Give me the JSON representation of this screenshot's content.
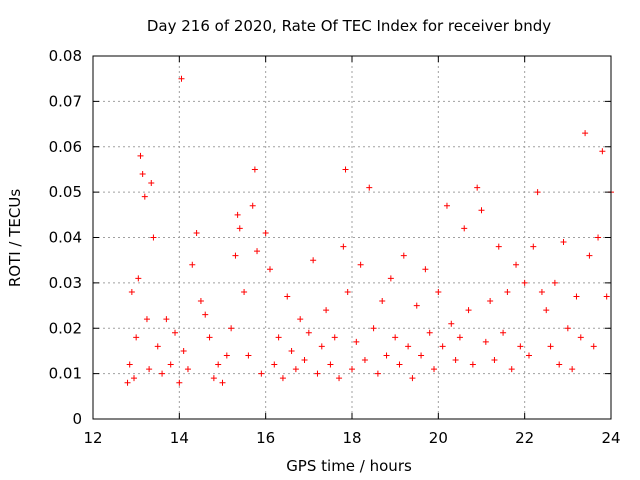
{
  "chart_data": {
    "type": "scatter",
    "title": "Day 216 of 2020, Rate Of TEC Index for receiver bndy",
    "xlabel": "GPS time / hours",
    "ylabel": "ROTI / TECUs",
    "xlim": [
      12,
      24
    ],
    "ylim": [
      0,
      0.08
    ],
    "xticks": [
      12,
      14,
      16,
      18,
      20,
      22,
      24
    ],
    "xtick_labels": [
      "12",
      "14",
      "16",
      "18",
      "20",
      "22",
      "24"
    ],
    "yticks": [
      0,
      0.01,
      0.02,
      0.03,
      0.04,
      0.05,
      0.06,
      0.07,
      0.08
    ],
    "ytick_labels": [
      "0",
      "0.01",
      "0.02",
      "0.03",
      "0.04",
      "0.05",
      "0.06",
      "0.07",
      "0.08"
    ],
    "grid": true,
    "marker": "+",
    "color": "#ff0000",
    "series": [
      {
        "name": "ROTI",
        "x": [
          12.8,
          12.85,
          12.9,
          12.95,
          13.0,
          13.05,
          13.1,
          13.15,
          13.2,
          13.25,
          13.3,
          13.35,
          13.4,
          13.5,
          13.6,
          13.7,
          13.8,
          13.9,
          14.0,
          14.05,
          14.1,
          14.2,
          14.3,
          14.4,
          14.5,
          14.6,
          14.7,
          14.8,
          14.9,
          15.0,
          15.1,
          15.2,
          15.3,
          15.35,
          15.4,
          15.5,
          15.6,
          15.7,
          15.75,
          15.8,
          15.9,
          16.0,
          16.1,
          16.2,
          16.3,
          16.4,
          16.5,
          16.6,
          16.7,
          16.8,
          16.9,
          17.0,
          17.1,
          17.2,
          17.3,
          17.4,
          17.5,
          17.6,
          17.7,
          17.8,
          17.85,
          17.9,
          18.0,
          18.1,
          18.2,
          18.3,
          18.4,
          18.5,
          18.6,
          18.7,
          18.8,
          18.9,
          19.0,
          19.1,
          19.2,
          19.3,
          19.4,
          19.5,
          19.6,
          19.7,
          19.8,
          19.9,
          20.0,
          20.1,
          20.2,
          20.3,
          20.4,
          20.5,
          20.6,
          20.7,
          20.8,
          20.9,
          21.0,
          21.1,
          21.2,
          21.3,
          21.4,
          21.5,
          21.6,
          21.7,
          21.8,
          21.9,
          22.0,
          22.1,
          22.2,
          22.3,
          22.4,
          22.5,
          22.6,
          22.7,
          22.8,
          22.9,
          23.0,
          23.1,
          23.2,
          23.3,
          23.4,
          23.5,
          23.6,
          23.7,
          23.8,
          23.9,
          24.0
        ],
        "y": [
          0.008,
          0.012,
          0.028,
          0.009,
          0.018,
          0.031,
          0.058,
          0.054,
          0.049,
          0.022,
          0.011,
          0.052,
          0.04,
          0.016,
          0.01,
          0.022,
          0.012,
          0.019,
          0.008,
          0.075,
          0.015,
          0.011,
          0.034,
          0.041,
          0.026,
          0.023,
          0.018,
          0.009,
          0.012,
          0.008,
          0.014,
          0.02,
          0.036,
          0.045,
          0.042,
          0.028,
          0.014,
          0.047,
          0.055,
          0.037,
          0.01,
          0.041,
          0.033,
          0.012,
          0.018,
          0.009,
          0.027,
          0.015,
          0.011,
          0.022,
          0.013,
          0.019,
          0.035,
          0.01,
          0.016,
          0.024,
          0.012,
          0.018,
          0.009,
          0.038,
          0.055,
          0.028,
          0.011,
          0.017,
          0.034,
          0.013,
          0.051,
          0.02,
          0.01,
          0.026,
          0.014,
          0.031,
          0.018,
          0.012,
          0.036,
          0.016,
          0.009,
          0.025,
          0.014,
          0.033,
          0.019,
          0.011,
          0.028,
          0.016,
          0.047,
          0.021,
          0.013,
          0.018,
          0.042,
          0.024,
          0.012,
          0.051,
          0.046,
          0.017,
          0.026,
          0.013,
          0.038,
          0.019,
          0.028,
          0.011,
          0.034,
          0.016,
          0.03,
          0.014,
          0.038,
          0.05,
          0.028,
          0.024,
          0.016,
          0.03,
          0.012,
          0.039,
          0.02,
          0.011,
          0.027,
          0.018,
          0.063,
          0.036,
          0.016,
          0.04,
          0.059,
          0.027,
          0.05
        ]
      }
    ]
  }
}
